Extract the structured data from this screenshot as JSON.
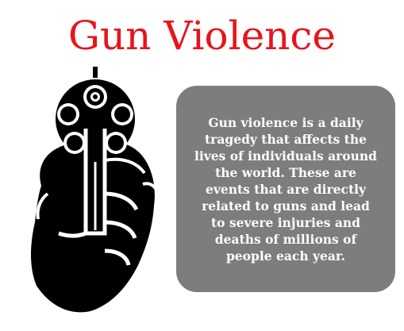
{
  "title": "Gun Violence",
  "title_color": "#e8141b",
  "illustration": {
    "icon": "revolver-in-hand-icon"
  },
  "info_box": {
    "background": "#7d7d7d",
    "text": "Gun violence is a daily tragedy that affects the lives of individuals around the world. These are events that are directly related to guns and lead to severe injuries and deaths of millions of people each year."
  }
}
